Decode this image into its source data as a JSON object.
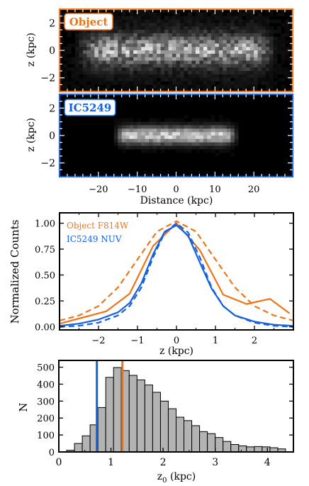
{
  "colors": {
    "object": "#f07415",
    "ic5249": "#1560e0",
    "hist_fill": "#b3b3b3",
    "axis": "#000000"
  },
  "chart_data": [
    {
      "type": "heatmap",
      "panel": "object-image",
      "label": "Object",
      "ylabel": "z (kpc)",
      "xlim": [
        -30,
        30
      ],
      "ylim": [
        -3,
        3
      ],
      "yticks": [
        -2,
        0,
        2
      ],
      "xticks": [
        -20,
        -10,
        0,
        10,
        20
      ],
      "grid": false
    },
    {
      "type": "heatmap",
      "panel": "ic5249-image",
      "label": "IC5249",
      "ylabel": "z (kpc)",
      "xlabel": "Distance (kpc)",
      "xlim": [
        -30,
        30
      ],
      "ylim": [
        -3,
        3
      ],
      "yticks": [
        -2,
        0,
        2
      ],
      "xticks": [
        -20,
        -10,
        0,
        10,
        20
      ],
      "grid": false
    },
    {
      "type": "line",
      "panel": "profiles",
      "xlabel": "z (kpc)",
      "ylabel": "Normalized Counts",
      "xlim": [
        -3,
        3
      ],
      "ylim": [
        -0.03,
        1.1
      ],
      "xticks": [
        -2,
        -1,
        0,
        1,
        2
      ],
      "yticks": [
        0.0,
        0.25,
        0.5,
        0.75,
        1.0
      ],
      "legend_placement": "top-left",
      "grid": false,
      "series": [
        {
          "name": "Object F814W",
          "color_key": "object",
          "style": "solid",
          "x": [
            -3.0,
            -2.4,
            -1.8,
            -1.2,
            -0.6,
            0.0,
            0.6,
            1.2,
            1.8,
            2.4,
            2.9
          ],
          "values": [
            0.03,
            0.09,
            0.15,
            0.32,
            0.78,
            1.0,
            0.74,
            0.31,
            0.22,
            0.27,
            0.13
          ]
        },
        {
          "name": "",
          "color_key": "object",
          "style": "dashed",
          "x": [
            -3.0,
            -2.5,
            -2.0,
            -1.5,
            -1.0,
            -0.5,
            0.0,
            0.5,
            1.0,
            1.5,
            2.0,
            2.5,
            3.0
          ],
          "values": [
            0.06,
            0.11,
            0.2,
            0.38,
            0.65,
            0.92,
            1.02,
            0.92,
            0.65,
            0.38,
            0.2,
            0.11,
            0.06
          ]
        },
        {
          "name": "IC5249 NUV",
          "color_key": "ic5249",
          "style": "solid",
          "x": [
            -3.0,
            -2.5,
            -2.0,
            -1.5,
            -1.2,
            -0.9,
            -0.6,
            -0.3,
            0.0,
            0.3,
            0.6,
            0.9,
            1.2,
            1.5,
            2.0,
            2.5,
            3.0
          ],
          "values": [
            0.01,
            0.03,
            0.07,
            0.14,
            0.23,
            0.42,
            0.7,
            0.92,
            0.98,
            0.88,
            0.62,
            0.37,
            0.2,
            0.11,
            0.05,
            0.02,
            0.01
          ]
        },
        {
          "name": "",
          "color_key": "ic5249",
          "style": "dashed",
          "x": [
            -3.0,
            -2.5,
            -2.0,
            -1.5,
            -1.2,
            -0.9,
            -0.6,
            -0.3,
            0.0,
            0.3,
            0.6,
            0.9,
            1.2,
            1.5,
            2.0,
            2.5,
            3.0
          ],
          "values": [
            0.0,
            0.01,
            0.04,
            0.11,
            0.2,
            0.38,
            0.67,
            0.91,
            1.0,
            0.91,
            0.67,
            0.38,
            0.2,
            0.11,
            0.04,
            0.01,
            0.0
          ]
        }
      ]
    },
    {
      "type": "bar",
      "panel": "histogram",
      "xlabel": "z",
      "xlabel_sub": "0",
      "xlabel_unit": " (kpc)",
      "ylabel": "N",
      "xlim": [
        0,
        4.5
      ],
      "ylim": [
        0,
        540
      ],
      "xticks": [
        0,
        1,
        2,
        3,
        4
      ],
      "yticks": [
        0,
        100,
        200,
        300,
        400,
        500
      ],
      "bin_width": 0.15,
      "bin_edges_start": 0.15,
      "values": [
        10,
        50,
        95,
        160,
        262,
        440,
        498,
        480,
        452,
        425,
        395,
        352,
        300,
        255,
        205,
        185,
        155,
        120,
        108,
        85,
        62,
        44,
        36,
        30,
        32,
        30,
        25,
        18
      ],
      "vlines": [
        {
          "x": 0.73,
          "color_key": "ic5249"
        },
        {
          "x": 1.22,
          "color_key": "object"
        }
      ]
    }
  ]
}
